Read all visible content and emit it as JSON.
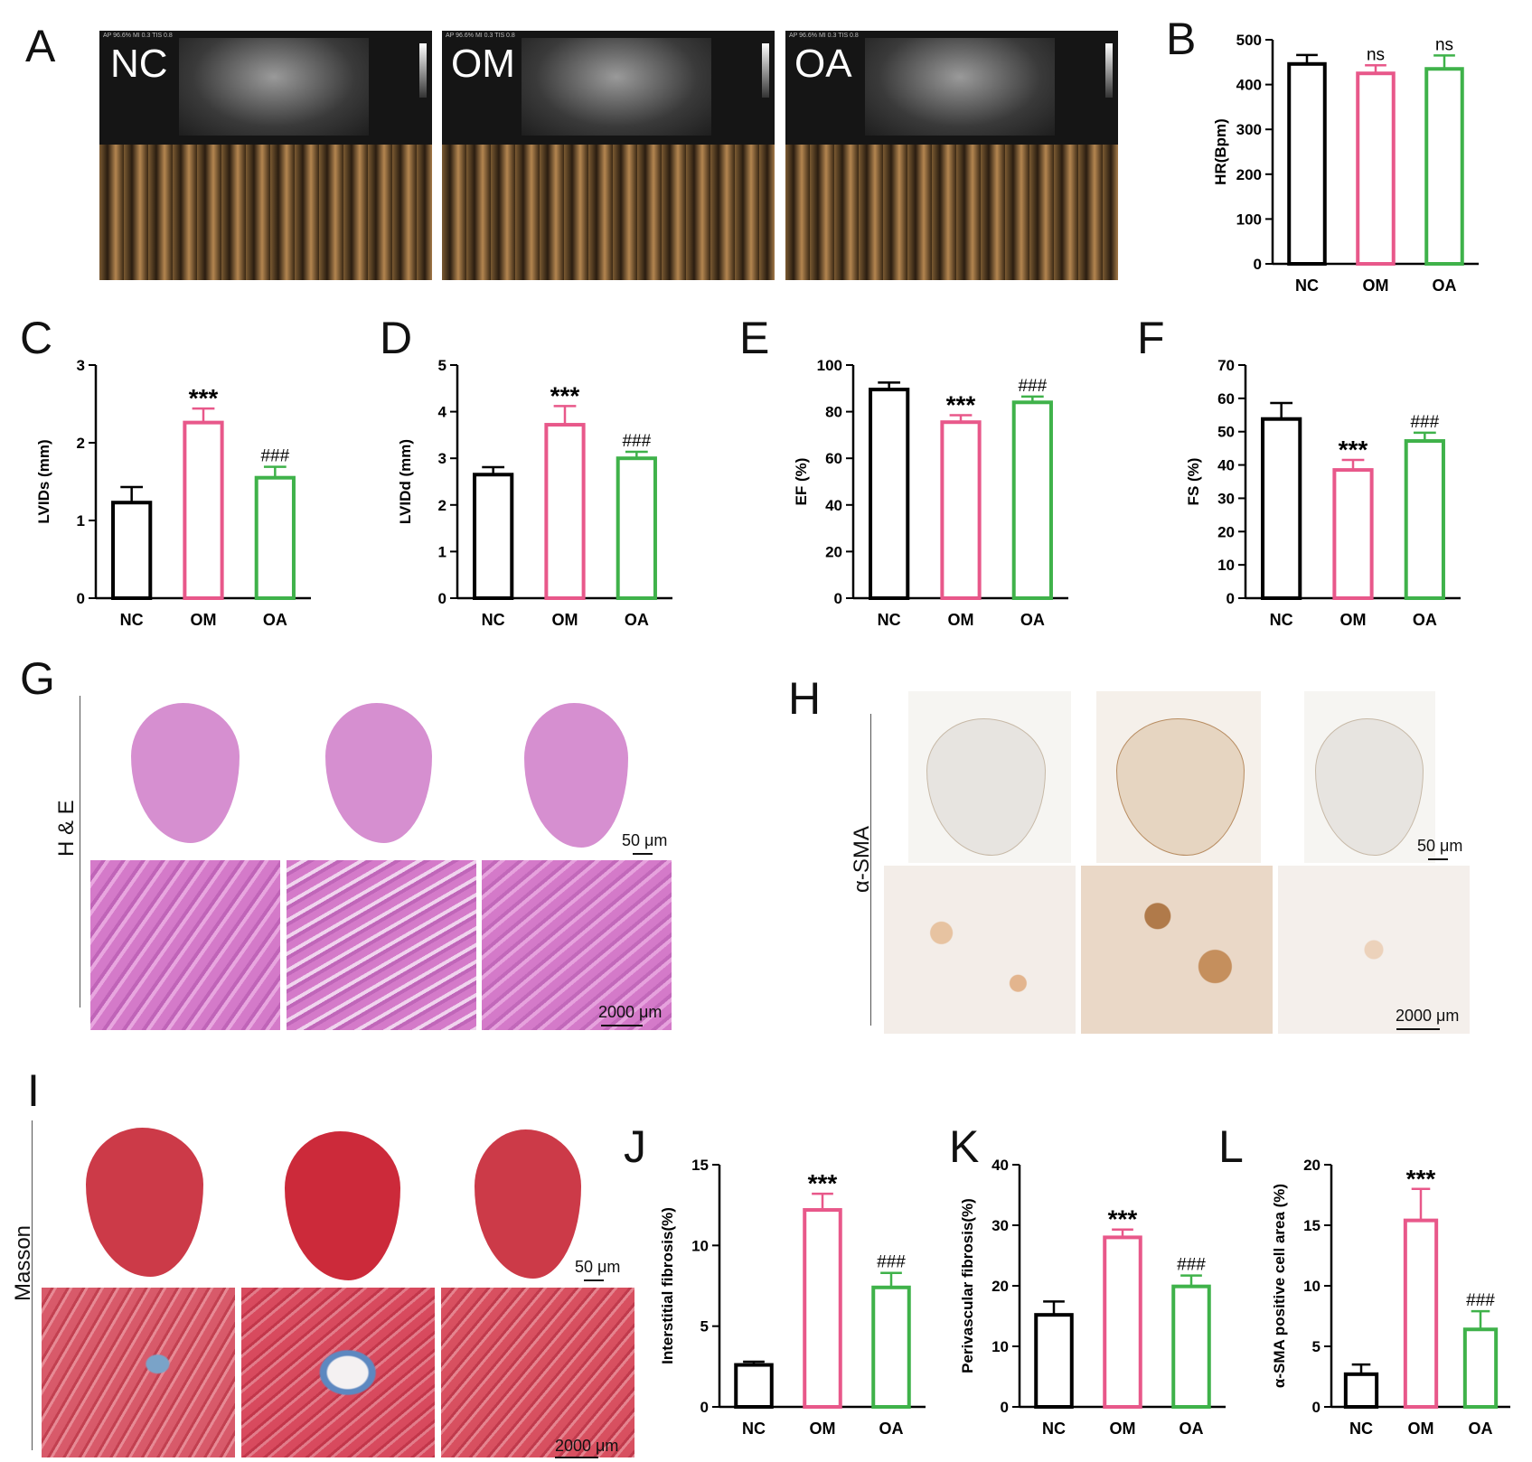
{
  "panel_letters": [
    "A",
    "B",
    "C",
    "D",
    "E",
    "F",
    "G",
    "H",
    "I",
    "J",
    "K",
    "L"
  ],
  "echo": {
    "labels": [
      "NC",
      "OM",
      "OA"
    ],
    "header_text": [
      "AP 96.6%  MI 0.3 TIS 0.8",
      "AP 96.6%  MI 0.3 TIS 0.8",
      "AP 96.6%  MI 0.3 TIS 0.8"
    ]
  },
  "stains": {
    "he_label": "H & E",
    "sma_label": "α-SMA",
    "masson_label": "Masson",
    "scale_top": "50 μm",
    "scale_bottom": "2000 μm"
  },
  "colors": {
    "NC": "#000000",
    "OM": "#e8588a",
    "OA": "#3fb24a"
  },
  "chart_data": [
    {
      "id": "B",
      "type": "bar",
      "categories": [
        "NC",
        "OM",
        "OA"
      ],
      "values": [
        446,
        425,
        435
      ],
      "errors": [
        20,
        18,
        30
      ],
      "annotations": [
        "",
        "ns",
        "ns"
      ],
      "ylabel": "HR(Bpm)",
      "ylim": [
        0,
        500
      ],
      "yticks": [
        0,
        100,
        200,
        300,
        400,
        500
      ],
      "xlabel": ""
    },
    {
      "id": "C",
      "type": "bar",
      "categories": [
        "NC",
        "OM",
        "OA"
      ],
      "values": [
        1.23,
        2.26,
        1.55
      ],
      "errors": [
        0.2,
        0.18,
        0.14
      ],
      "annotations": [
        "",
        "***",
        "###"
      ],
      "ylabel": "LVIDs (mm)",
      "ylim": [
        0,
        3
      ],
      "yticks": [
        0,
        1,
        2,
        3
      ],
      "xlabel": ""
    },
    {
      "id": "D",
      "type": "bar",
      "categories": [
        "NC",
        "OM",
        "OA"
      ],
      "values": [
        2.65,
        3.72,
        3.0
      ],
      "errors": [
        0.16,
        0.4,
        0.14
      ],
      "annotations": [
        "",
        "***",
        "###"
      ],
      "ylabel": "LVIDd (mm)",
      "ylim": [
        0,
        5
      ],
      "yticks": [
        0,
        1,
        2,
        3,
        4,
        5
      ],
      "xlabel": ""
    },
    {
      "id": "E",
      "type": "bar",
      "categories": [
        "NC",
        "OM",
        "OA"
      ],
      "values": [
        89.5,
        75.5,
        84.0
      ],
      "errors": [
        3,
        3,
        2.5
      ],
      "annotations": [
        "",
        "***",
        "###"
      ],
      "ylabel": "EF (%)",
      "ylim": [
        0,
        100
      ],
      "yticks": [
        0,
        20,
        40,
        60,
        80,
        100
      ],
      "xlabel": ""
    },
    {
      "id": "F",
      "type": "bar",
      "categories": [
        "NC",
        "OM",
        "OA"
      ],
      "values": [
        53.8,
        38.5,
        47.2
      ],
      "errors": [
        4.8,
        3,
        2.5
      ],
      "annotations": [
        "",
        "***",
        "###"
      ],
      "ylabel": "FS (%)",
      "ylim": [
        0,
        70
      ],
      "yticks": [
        0,
        10,
        20,
        30,
        40,
        50,
        60,
        70
      ],
      "xlabel": ""
    },
    {
      "id": "J",
      "type": "bar",
      "categories": [
        "NC",
        "OM",
        "OA"
      ],
      "values": [
        2.6,
        12.2,
        7.4
      ],
      "errors": [
        0.2,
        1.0,
        0.9
      ],
      "annotations": [
        "",
        "***",
        "###"
      ],
      "ylabel": "Interstitial fibrosis(%)",
      "ylim": [
        0,
        15
      ],
      "yticks": [
        0,
        5,
        10,
        15
      ],
      "xlabel": ""
    },
    {
      "id": "K",
      "type": "bar",
      "categories": [
        "NC",
        "OM",
        "OA"
      ],
      "values": [
        15.2,
        28.0,
        19.9
      ],
      "errors": [
        2.2,
        1.3,
        1.8
      ],
      "annotations": [
        "",
        "***",
        "###"
      ],
      "ylabel": "Perivascular fibrosis(%)",
      "ylim": [
        0,
        40
      ],
      "yticks": [
        0,
        10,
        20,
        30,
        40
      ],
      "xlabel": ""
    },
    {
      "id": "L",
      "type": "bar",
      "categories": [
        "NC",
        "OM",
        "OA"
      ],
      "values": [
        2.7,
        15.4,
        6.4
      ],
      "errors": [
        0.8,
        2.6,
        1.5
      ],
      "annotations": [
        "",
        "***",
        "###"
      ],
      "ylabel": "α-SMA positive cell area (%)",
      "ylim": [
        0,
        20
      ],
      "yticks": [
        0,
        5,
        10,
        15,
        20
      ],
      "xlabel": ""
    }
  ]
}
